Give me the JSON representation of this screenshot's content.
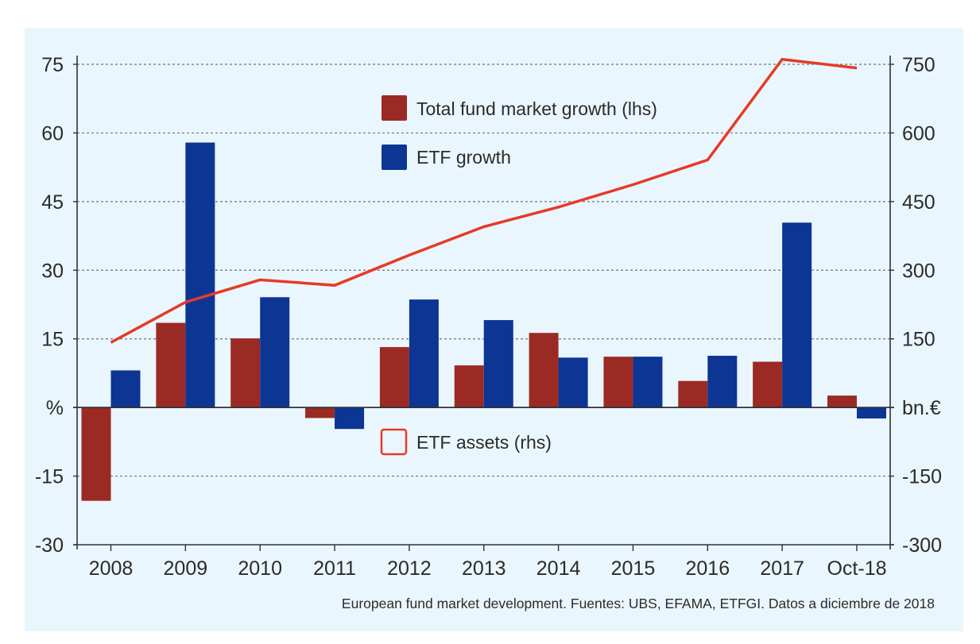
{
  "chart_data": {
    "type": "bar",
    "title": "",
    "categories": [
      "2008",
      "2009",
      "2010",
      "2011",
      "2012",
      "2013",
      "2014",
      "2015",
      "2016",
      "2017",
      "Oct-18"
    ],
    "series": [
      {
        "name": "Total fund market growth (lhs)",
        "type": "bar",
        "axis": "left",
        "color": "#9b2a24",
        "values": [
          -20.4,
          18.5,
          15.1,
          -2.3,
          13.2,
          9.2,
          16.3,
          11.1,
          5.8,
          10.0,
          2.6
        ]
      },
      {
        "name": "ETF growth",
        "type": "bar",
        "axis": "left",
        "color": "#0c3594",
        "values": [
          8.1,
          57.9,
          24.1,
          -4.7,
          23.6,
          19.1,
          10.9,
          11.1,
          11.3,
          40.4,
          -2.4
        ]
      },
      {
        "name": "ETF assets (rhs)",
        "type": "line",
        "axis": "right",
        "color": "#e63a26",
        "values": [
          142,
          230,
          279,
          267,
          333,
          395,
          438,
          487,
          541,
          761,
          742
        ]
      }
    ],
    "left_axis": {
      "label": "%",
      "ylim": [
        -30,
        75
      ],
      "ticks": [
        "75",
        "60",
        "45",
        "30",
        "15",
        "%",
        "-15",
        "-30"
      ],
      "tick_values": [
        75,
        60,
        45,
        30,
        15,
        0,
        -15,
        -30
      ]
    },
    "right_axis": {
      "label": "bn.€",
      "ylim": [
        -300,
        750
      ],
      "ticks": [
        "750",
        "600",
        "450",
        "300",
        "150",
        "bn.€",
        "-150",
        "-300"
      ],
      "tick_values": [
        750,
        600,
        450,
        300,
        150,
        0,
        -150,
        -300
      ]
    },
    "grid": true,
    "legend": [
      {
        "label": "Total fund market growth (lhs)",
        "kind": "filled",
        "color": "#9b2a24",
        "placement": "top-center"
      },
      {
        "label": "ETF growth",
        "kind": "filled",
        "color": "#0c3594",
        "placement": "top-center"
      },
      {
        "label": "ETF assets (rhs)",
        "kind": "outline",
        "color": "#e63a26",
        "placement": "center"
      }
    ],
    "footer": "European fund market development. Fuentes: UBS, EFAMA, ETFGI. Datos a diciembre de 2018"
  }
}
